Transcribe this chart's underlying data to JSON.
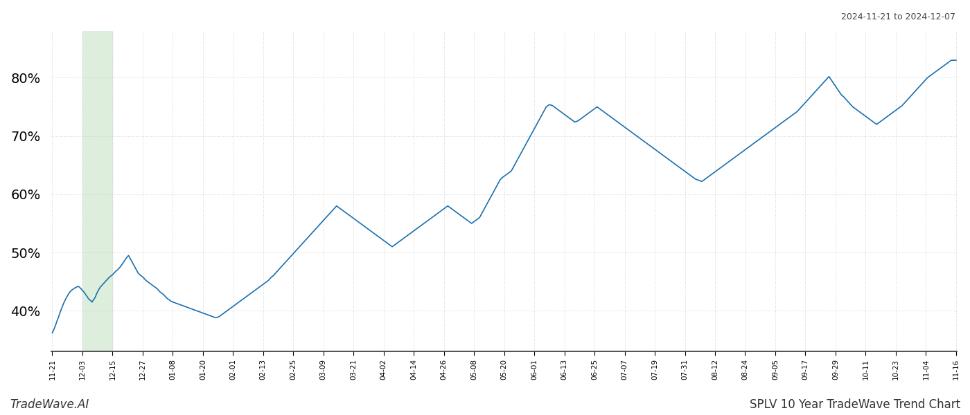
{
  "title_top_right": "2024-11-21 to 2024-12-07",
  "title_bottom_left": "TradeWave.AI",
  "title_bottom_right": "SPLV 10 Year TradeWave Trend Chart",
  "line_color": "#1a6faf",
  "highlight_color": "#ddeedd",
  "background_color": "#ffffff",
  "grid_color": "#cccccc",
  "ylim": [
    33,
    88
  ],
  "yticks": [
    40,
    50,
    60,
    70,
    80
  ],
  "x_tick_labels": [
    "11-21",
    "12-03",
    "12-15",
    "12-27",
    "01-08",
    "01-20",
    "02-01",
    "02-13",
    "02-25",
    "03-09",
    "03-21",
    "04-02",
    "04-14",
    "04-26",
    "05-08",
    "05-20",
    "06-01",
    "06-13",
    "06-25",
    "07-07",
    "07-19",
    "07-31",
    "08-12",
    "08-24",
    "09-05",
    "09-17",
    "09-29",
    "10-11",
    "10-23",
    "11-04",
    "11-16"
  ],
  "highlight_label_start": "12-03",
  "highlight_label_end": "12-15",
  "y_values": [
    36.2,
    36.8,
    37.5,
    38.3,
    39.0,
    39.8,
    40.5,
    41.2,
    41.8,
    42.3,
    42.8,
    43.2,
    43.5,
    43.7,
    43.9,
    44.0,
    44.2,
    44.1,
    43.8,
    43.5,
    43.2,
    42.8,
    42.4,
    42.0,
    41.8,
    41.5,
    41.9,
    42.3,
    43.0,
    43.5,
    44.0,
    44.3,
    44.6,
    44.9,
    45.2,
    45.5,
    45.8,
    46.0,
    46.2,
    46.5,
    46.8,
    47.0,
    47.3,
    47.6,
    48.0,
    48.4,
    48.8,
    49.2,
    49.5,
    49.0,
    48.5,
    48.0,
    47.5,
    47.0,
    46.5,
    46.2,
    46.0,
    45.8,
    45.5,
    45.2,
    45.0,
    44.8,
    44.6,
    44.4,
    44.2,
    44.0,
    43.8,
    43.5,
    43.2,
    43.0,
    42.8,
    42.5,
    42.2,
    42.0,
    41.8,
    41.6,
    41.5,
    41.4,
    41.3,
    41.2,
    41.1,
    41.0,
    40.9,
    40.8,
    40.7,
    40.6,
    40.5,
    40.4,
    40.3,
    40.2,
    40.1,
    40.0,
    39.9,
    39.8,
    39.7,
    39.6,
    39.5,
    39.4,
    39.3,
    39.2,
    39.1,
    39.0,
    38.9,
    38.8,
    38.9,
    39.0,
    39.2,
    39.4,
    39.6,
    39.8,
    40.0,
    40.2,
    40.4,
    40.6,
    40.8,
    41.0,
    41.2,
    41.4,
    41.6,
    41.8,
    42.0,
    42.2,
    42.4,
    42.6,
    42.8,
    43.0,
    43.2,
    43.4,
    43.6,
    43.8,
    44.0,
    44.2,
    44.4,
    44.6,
    44.8,
    45.0,
    45.2,
    45.5,
    45.8,
    46.0,
    46.3,
    46.6,
    46.9,
    47.2,
    47.5,
    47.8,
    48.1,
    48.4,
    48.7,
    49.0,
    49.3,
    49.6,
    49.9,
    50.2,
    50.5,
    50.8,
    51.1,
    51.4,
    51.7,
    52.0,
    52.3,
    52.6,
    52.9,
    53.2,
    53.5,
    53.8,
    54.1,
    54.4,
    54.7,
    55.0,
    55.3,
    55.6,
    55.9,
    56.2,
    56.5,
    56.8,
    57.1,
    57.4,
    57.7,
    58.0,
    57.8,
    57.6,
    57.4,
    57.2,
    57.0,
    56.8,
    56.6,
    56.4,
    56.2,
    56.0,
    55.8,
    55.6,
    55.4,
    55.2,
    55.0,
    54.8,
    54.6,
    54.4,
    54.2,
    54.0,
    53.8,
    53.6,
    53.4,
    53.2,
    53.0,
    52.8,
    52.6,
    52.4,
    52.2,
    52.0,
    51.8,
    51.6,
    51.4,
    51.2,
    51.0,
    51.2,
    51.4,
    51.6,
    51.8,
    52.0,
    52.2,
    52.4,
    52.6,
    52.8,
    53.0,
    53.2,
    53.4,
    53.6,
    53.8,
    54.0,
    54.2,
    54.4,
    54.6,
    54.8,
    55.0,
    55.2,
    55.4,
    55.6,
    55.8,
    56.0,
    56.2,
    56.4,
    56.6,
    56.8,
    57.0,
    57.2,
    57.4,
    57.6,
    57.8,
    58.0,
    57.8,
    57.6,
    57.4,
    57.2,
    57.0,
    56.8,
    56.6,
    56.4,
    56.2,
    56.0,
    55.8,
    55.6,
    55.4,
    55.2,
    55.0,
    55.2,
    55.4,
    55.6,
    55.8,
    56.0,
    56.5,
    57.0,
    57.5,
    58.0,
    58.5,
    59.0,
    59.5,
    60.0,
    60.5,
    61.0,
    61.5,
    62.0,
    62.5,
    62.8,
    63.0,
    63.2,
    63.4,
    63.6,
    63.8,
    64.0,
    64.5,
    65.0,
    65.5,
    66.0,
    66.5,
    67.0,
    67.5,
    68.0,
    68.5,
    69.0,
    69.5,
    70.0,
    70.5,
    71.0,
    71.5,
    72.0,
    72.5,
    73.0,
    73.5,
    74.0,
    74.5,
    75.0,
    75.2,
    75.4,
    75.3,
    75.2,
    75.0,
    74.8,
    74.6,
    74.4,
    74.2,
    74.0,
    73.8,
    73.6,
    73.4,
    73.2,
    73.0,
    72.8,
    72.6,
    72.4,
    72.5,
    72.6,
    72.8,
    73.0,
    73.2,
    73.4,
    73.6,
    73.8,
    74.0,
    74.2,
    74.4,
    74.6,
    74.8,
    75.0,
    74.8,
    74.6,
    74.4,
    74.2,
    74.0,
    73.8,
    73.6,
    73.4,
    73.2,
    73.0,
    72.8,
    72.6,
    72.4,
    72.2,
    72.0,
    71.8,
    71.6,
    71.4,
    71.2,
    71.0,
    70.8,
    70.6,
    70.4,
    70.2,
    70.0,
    69.8,
    69.6,
    69.4,
    69.2,
    69.0,
    68.8,
    68.6,
    68.4,
    68.2,
    68.0,
    67.8,
    67.6,
    67.4,
    67.2,
    67.0,
    66.8,
    66.6,
    66.4,
    66.2,
    66.0,
    65.8,
    65.6,
    65.4,
    65.2,
    65.0,
    64.8,
    64.6,
    64.4,
    64.2,
    64.0,
    63.8,
    63.6,
    63.4,
    63.2,
    63.0,
    62.8,
    62.6,
    62.5,
    62.4,
    62.3,
    62.2,
    62.4,
    62.6,
    62.8,
    63.0,
    63.2,
    63.4,
    63.6,
    63.8,
    64.0,
    64.2,
    64.4,
    64.6,
    64.8,
    65.0,
    65.2,
    65.4,
    65.6,
    65.8,
    66.0,
    66.2,
    66.4,
    66.6,
    66.8,
    67.0,
    67.2,
    67.4,
    67.6,
    67.8,
    68.0,
    68.2,
    68.4,
    68.6,
    68.8,
    69.0,
    69.2,
    69.4,
    69.6,
    69.8,
    70.0,
    70.2,
    70.4,
    70.6,
    70.8,
    71.0,
    71.2,
    71.4,
    71.6,
    71.8,
    72.0,
    72.2,
    72.4,
    72.6,
    72.8,
    73.0,
    73.2,
    73.4,
    73.6,
    73.8,
    74.0,
    74.2,
    74.5,
    74.8,
    75.1,
    75.4,
    75.7,
    76.0,
    76.3,
    76.6,
    76.9,
    77.2,
    77.5,
    77.8,
    78.1,
    78.4,
    78.7,
    79.0,
    79.3,
    79.6,
    79.9,
    80.2,
    79.8,
    79.4,
    79.0,
    78.6,
    78.2,
    77.8,
    77.4,
    77.0,
    76.8,
    76.5,
    76.2,
    75.9,
    75.6,
    75.3,
    75.0,
    74.8,
    74.6,
    74.4,
    74.2,
    74.0,
    73.8,
    73.6,
    73.4,
    73.2,
    73.0,
    72.8,
    72.6,
    72.4,
    72.2,
    72.0,
    72.2,
    72.4,
    72.6,
    72.8,
    73.0,
    73.2,
    73.4,
    73.6,
    73.8,
    74.0,
    74.2,
    74.4,
    74.6,
    74.8,
    75.0,
    75.2,
    75.5,
    75.8,
    76.1,
    76.4,
    76.7,
    77.0,
    77.3,
    77.6,
    77.9,
    78.2,
    78.5,
    78.8,
    79.1,
    79.4,
    79.7,
    80.0,
    80.2,
    80.4,
    80.6,
    80.8,
    81.0,
    81.2,
    81.4,
    81.6,
    81.8,
    82.0,
    82.2,
    82.4,
    82.6,
    82.8,
    83.0,
    83.0,
    83.0,
    83.0
  ]
}
